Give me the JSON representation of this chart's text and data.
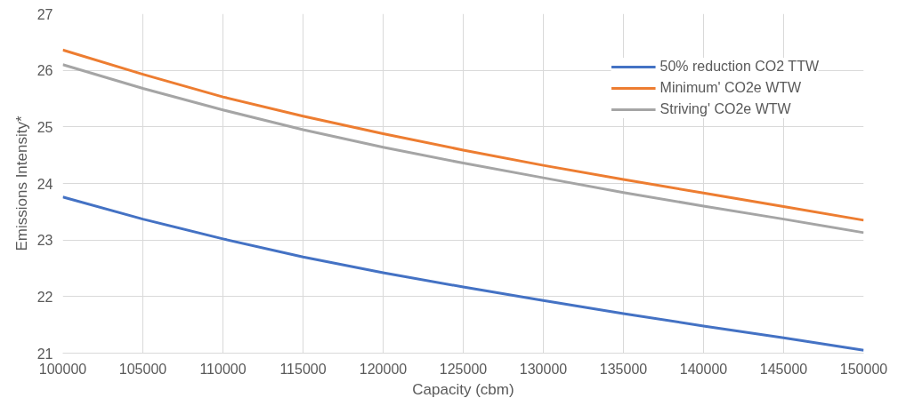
{
  "chart_data": {
    "type": "line",
    "xlabel": "Capacity (cbm)",
    "ylabel": "Emissions Intensity*",
    "x": [
      100000,
      105000,
      110000,
      115000,
      120000,
      125000,
      130000,
      135000,
      140000,
      145000,
      150000
    ],
    "series": [
      {
        "name": "50% reduction CO2 TTW",
        "color": "#4472c4",
        "values": [
          23.76,
          23.37,
          23.02,
          22.7,
          22.42,
          22.17,
          21.93,
          21.7,
          21.48,
          21.27,
          21.05
        ]
      },
      {
        "name": "Minimum' CO2e WTW",
        "color": "#ed7d31",
        "values": [
          26.36,
          25.93,
          25.53,
          25.19,
          24.88,
          24.59,
          24.32,
          24.07,
          23.83,
          23.59,
          23.35
        ]
      },
      {
        "name": "Striving' CO2e WTW",
        "color": "#a5a5a5",
        "values": [
          26.1,
          25.68,
          25.3,
          24.95,
          24.64,
          24.36,
          24.1,
          23.84,
          23.6,
          23.37,
          23.13
        ]
      }
    ],
    "xlim": [
      100000,
      150000
    ],
    "xticks": [
      100000,
      105000,
      110000,
      115000,
      120000,
      125000,
      130000,
      135000,
      140000,
      145000,
      150000
    ],
    "ylim": [
      21,
      27
    ],
    "yticks": [
      21,
      22,
      23,
      24,
      25,
      26,
      27
    ],
    "grid": true,
    "legend": "top right",
    "marker": "none",
    "line_style": "solid"
  }
}
